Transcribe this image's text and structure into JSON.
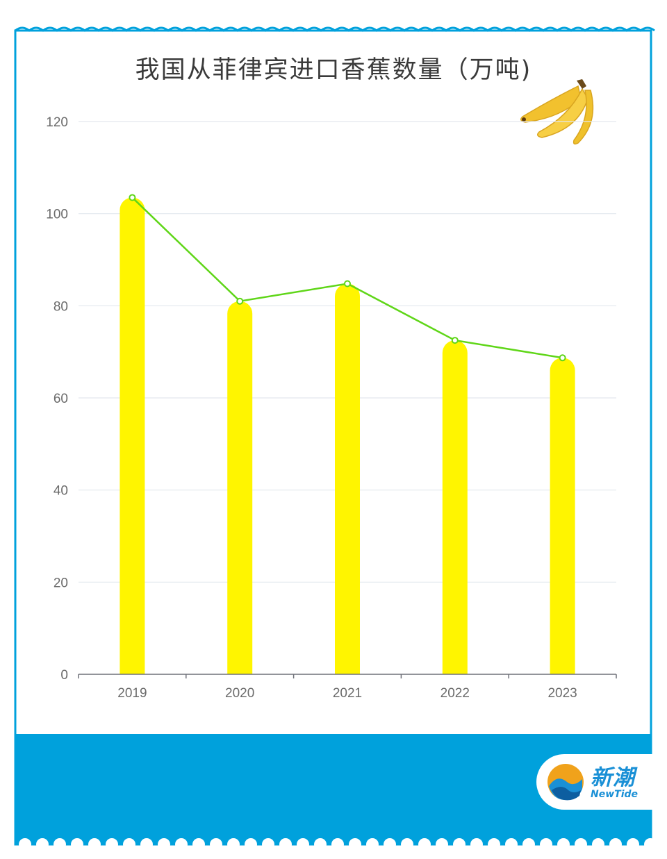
{
  "chart_data": {
    "type": "bar",
    "title": "我国从菲律宾进口香蕉数量（万吨)",
    "categories": [
      "2019",
      "2020",
      "2021",
      "2022",
      "2023"
    ],
    "values": [
      103.5,
      81,
      84.8,
      72.5,
      68.7
    ],
    "overlay_line": {
      "type": "line",
      "values": [
        103.5,
        81,
        84.8,
        72.5,
        68.7
      ]
    },
    "ylim": [
      0,
      120
    ],
    "yticks": [
      "0",
      "20",
      "40",
      "60",
      "80",
      "100",
      "120"
    ],
    "grid": true,
    "colors": {
      "bar": "#fff500",
      "line": "#5fd618"
    }
  },
  "frame": {
    "accent": "#00a1dc"
  },
  "logo": {
    "cn": "新潮",
    "en": "NewTide"
  },
  "decor": {
    "banana": "banana-icon"
  }
}
